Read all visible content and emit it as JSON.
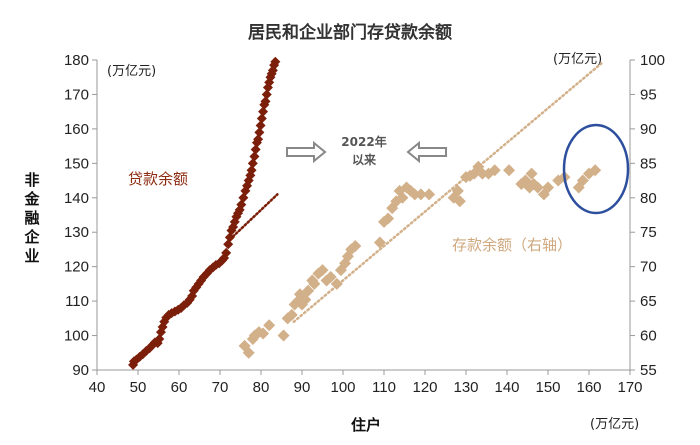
{
  "colors": {
    "loan": "#7b1f0a",
    "loan_label": "#8b2a0e",
    "deposit": "#d2b08a",
    "deposit_label": "#cfa87e",
    "ellipse": "#2d4f9e",
    "arrow": "#888888",
    "axis": "#999999",
    "text": "#222222"
  },
  "chart_data": {
    "type": "scatter",
    "title": "居民和企业部门存贷款余额",
    "xlabel": "住户",
    "ylabel": "非金融企业",
    "x_unit": "(万亿元)",
    "y_left_unit": "(万亿元)",
    "y_right_unit": "(万亿元)",
    "xlim": [
      40,
      170
    ],
    "ylim_left": [
      90,
      180
    ],
    "ylim_right": [
      55,
      100
    ],
    "x_ticks": [
      "40",
      "50",
      "60",
      "70",
      "80",
      "90",
      "100",
      "110",
      "120",
      "130",
      "140",
      "150",
      "160",
      "170"
    ],
    "y_left_ticks": [
      "90",
      "100",
      "110",
      "120",
      "130",
      "140",
      "150",
      "160",
      "170",
      "180"
    ],
    "y_right_ticks": [
      "55",
      "60",
      "65",
      "70",
      "75",
      "80",
      "85",
      "90",
      "95",
      "100"
    ],
    "grid": false,
    "annotation": [
      "2022年",
      "以来"
    ],
    "series": [
      {
        "name": "贷款余额",
        "axis": "left",
        "marker": "diamond",
        "points": [
          [
            48.8,
            91.5
          ],
          [
            49.0,
            92.5
          ],
          [
            49.6,
            93.0
          ],
          [
            50.4,
            93.8
          ],
          [
            51.2,
            94.6
          ],
          [
            52.0,
            95.5
          ],
          [
            52.8,
            96.3
          ],
          [
            53.5,
            97.2
          ],
          [
            54.1,
            98.0
          ],
          [
            54.8,
            97.8
          ],
          [
            55.2,
            99.0
          ],
          [
            55.6,
            101.0
          ],
          [
            56.0,
            102.5
          ],
          [
            56.4,
            104.0
          ],
          [
            56.9,
            105.2
          ],
          [
            57.5,
            106.0
          ],
          [
            58.2,
            106.5
          ],
          [
            59.0,
            107.0
          ],
          [
            59.8,
            107.5
          ],
          [
            60.5,
            108.0
          ],
          [
            61.2,
            108.8
          ],
          [
            62.0,
            109.5
          ],
          [
            62.6,
            110.4
          ],
          [
            63.2,
            111.5
          ],
          [
            63.6,
            113.0
          ],
          [
            64.2,
            114.0
          ],
          [
            64.8,
            115.0
          ],
          [
            65.4,
            116.0
          ],
          [
            66.0,
            117.0
          ],
          [
            66.8,
            118.0
          ],
          [
            67.5,
            119.0
          ],
          [
            68.3,
            119.8
          ],
          [
            69.0,
            120.5
          ],
          [
            69.8,
            121.0
          ],
          [
            70.5,
            121.8
          ],
          [
            71.0,
            122.5
          ],
          [
            71.5,
            124.0
          ],
          [
            72.0,
            126.5
          ],
          [
            72.4,
            128.5
          ],
          [
            72.8,
            130.5
          ],
          [
            73.2,
            131.5
          ],
          [
            73.6,
            133.0
          ],
          [
            74.0,
            134.5
          ],
          [
            74.4,
            135.5
          ],
          [
            74.8,
            136.5
          ],
          [
            75.2,
            138.0
          ],
          [
            75.7,
            140.0
          ],
          [
            76.2,
            142.0
          ],
          [
            76.6,
            143.5
          ],
          [
            77.0,
            145.0
          ],
          [
            77.4,
            146.5
          ],
          [
            77.7,
            148.0
          ],
          [
            78.0,
            150.0
          ],
          [
            78.4,
            152.0
          ],
          [
            78.7,
            154.0
          ],
          [
            79.0,
            156.0
          ],
          [
            79.3,
            157.0
          ],
          [
            79.6,
            159.0
          ],
          [
            79.9,
            161.0
          ],
          [
            80.2,
            163.0
          ],
          [
            80.5,
            165.0
          ],
          [
            80.8,
            167.0
          ],
          [
            81.1,
            168.0
          ],
          [
            81.4,
            170.0
          ],
          [
            81.7,
            172.0
          ],
          [
            82.0,
            173.5
          ],
          [
            82.3,
            175.0
          ],
          [
            82.6,
            176.0
          ],
          [
            82.9,
            177.0
          ],
          [
            83.2,
            178.5
          ],
          [
            83.5,
            179.5
          ]
        ],
        "trend": [
          [
            72.5,
            128.0
          ],
          [
            84.0,
            141.0
          ]
        ]
      },
      {
        "name": "存款余额（右轴）",
        "axis": "right",
        "marker": "diamond",
        "points": [
          [
            76.0,
            58.5
          ],
          [
            77.0,
            57.5
          ],
          [
            78.0,
            59.5
          ],
          [
            78.5,
            60.0
          ],
          [
            79.5,
            60.5
          ],
          [
            80.5,
            60.3
          ],
          [
            82.0,
            61.5
          ],
          [
            85.5,
            60.0
          ],
          [
            86.5,
            62.5
          ],
          [
            87.5,
            63.0
          ],
          [
            88.2,
            64.5
          ],
          [
            89.0,
            65.0
          ],
          [
            89.5,
            66.0
          ],
          [
            90.0,
            64.5
          ],
          [
            90.8,
            65.2
          ],
          [
            91.5,
            66.5
          ],
          [
            92.5,
            68.0
          ],
          [
            93.0,
            67.5
          ],
          [
            94.0,
            69.0
          ],
          [
            95.0,
            69.5
          ],
          [
            96.0,
            68.0
          ],
          [
            97.0,
            68.5
          ],
          [
            98.5,
            67.5
          ],
          [
            99.5,
            69.5
          ],
          [
            100.5,
            70.5
          ],
          [
            101.2,
            71.5
          ],
          [
            102.0,
            72.5
          ],
          [
            103.0,
            73.0
          ],
          [
            109.0,
            73.5
          ],
          [
            110.0,
            76.5
          ],
          [
            111.0,
            77.0
          ],
          [
            112.0,
            78.5
          ],
          [
            113.0,
            79.5
          ],
          [
            113.8,
            81.0
          ],
          [
            114.5,
            80.0
          ],
          [
            115.5,
            81.5
          ],
          [
            116.5,
            81.0
          ],
          [
            117.5,
            80.5
          ],
          [
            119.0,
            80.5
          ],
          [
            121.0,
            80.5
          ],
          [
            127.0,
            80.0
          ],
          [
            128.0,
            81.0
          ],
          [
            128.5,
            79.5
          ],
          [
            130.0,
            83.0
          ],
          [
            131.0,
            83.2
          ],
          [
            132.0,
            83.5
          ],
          [
            133.0,
            84.5
          ],
          [
            134.0,
            83.5
          ],
          [
            135.5,
            83.5
          ],
          [
            137.0,
            84.0
          ],
          [
            140.5,
            84.0
          ],
          [
            143.5,
            82.0
          ],
          [
            144.5,
            82.5
          ],
          [
            145.5,
            81.5
          ],
          [
            146.0,
            83.5
          ],
          [
            146.5,
            82.0
          ],
          [
            147.5,
            81.5
          ],
          [
            149.0,
            80.5
          ],
          [
            150.0,
            81.5
          ],
          [
            152.5,
            82.5
          ],
          [
            154.0,
            83.0
          ],
          [
            157.5,
            81.5
          ],
          [
            158.5,
            82.5
          ],
          [
            160.0,
            83.5
          ],
          [
            161.5,
            84.0
          ]
        ],
        "trend": [
          [
            88.0,
            62.0
          ],
          [
            163.0,
            99.5
          ]
        ]
      }
    ]
  }
}
